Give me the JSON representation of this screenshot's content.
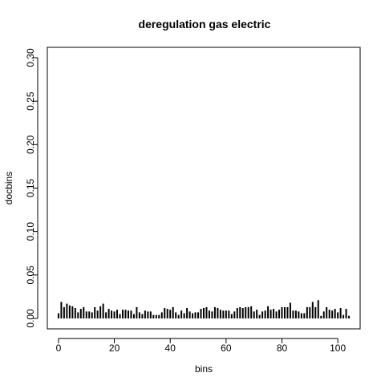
{
  "chart_data": {
    "type": "bar",
    "title": "deregulation gas electric",
    "xlabel": "bins",
    "ylabel": "docbins",
    "xlim": [
      -4,
      108
    ],
    "ylim": [
      -0.012,
      0.312
    ],
    "xticks": [
      0,
      20,
      40,
      60,
      80,
      100
    ],
    "yticks": [
      0.0,
      0.05,
      0.1,
      0.15,
      0.2,
      0.25,
      0.3
    ],
    "ytick_labels": [
      "0.00",
      "0.05",
      "0.10",
      "0.15",
      "0.20",
      "0.25",
      "0.30"
    ],
    "grid": false,
    "bar_color": "#000000",
    "x": [
      0,
      1,
      2,
      3,
      4,
      5,
      6,
      7,
      8,
      9,
      10,
      11,
      12,
      13,
      14,
      15,
      16,
      17,
      18,
      19,
      20,
      21,
      22,
      23,
      24,
      25,
      26,
      27,
      28,
      29,
      30,
      31,
      32,
      33,
      34,
      35,
      36,
      37,
      38,
      39,
      40,
      41,
      42,
      43,
      44,
      45,
      46,
      47,
      48,
      49,
      50,
      51,
      52,
      53,
      54,
      55,
      56,
      57,
      58,
      59,
      60,
      61,
      62,
      63,
      64,
      65,
      66,
      67,
      68,
      69,
      70,
      71,
      72,
      73,
      74,
      75,
      76,
      77,
      78,
      79,
      80,
      81,
      82,
      83,
      84,
      85,
      86,
      87,
      88,
      89,
      90,
      91,
      92,
      93,
      94,
      95,
      96,
      97,
      98,
      99,
      100,
      101,
      102,
      103,
      104
    ],
    "values": [
      0.006,
      0.019,
      0.013,
      0.017,
      0.015,
      0.014,
      0.012,
      0.007,
      0.011,
      0.013,
      0.008,
      0.008,
      0.007,
      0.013,
      0.009,
      0.014,
      0.017,
      0.007,
      0.011,
      0.009,
      0.008,
      0.01,
      0.005,
      0.01,
      0.01,
      0.009,
      0.009,
      0.005,
      0.013,
      0.007,
      0.005,
      0.009,
      0.008,
      0.008,
      0.004,
      0.004,
      0.004,
      0.007,
      0.012,
      0.011,
      0.01,
      0.013,
      0.007,
      0.004,
      0.009,
      0.006,
      0.012,
      0.008,
      0.006,
      0.007,
      0.007,
      0.011,
      0.012,
      0.013,
      0.009,
      0.008,
      0.013,
      0.012,
      0.01,
      0.009,
      0.009,
      0.009,
      0.005,
      0.008,
      0.012,
      0.013,
      0.012,
      0.013,
      0.013,
      0.014,
      0.008,
      0.01,
      0.004,
      0.008,
      0.009,
      0.014,
      0.01,
      0.011,
      0.008,
      0.01,
      0.013,
      0.013,
      0.013,
      0.018,
      0.009,
      0.009,
      0.008,
      0.006,
      0.006,
      0.013,
      0.013,
      0.019,
      0.013,
      0.021,
      0.003,
      0.008,
      0.013,
      0.01,
      0.009,
      0.011,
      0.007,
      0.012,
      0.004,
      0.011,
      0.003
    ]
  }
}
